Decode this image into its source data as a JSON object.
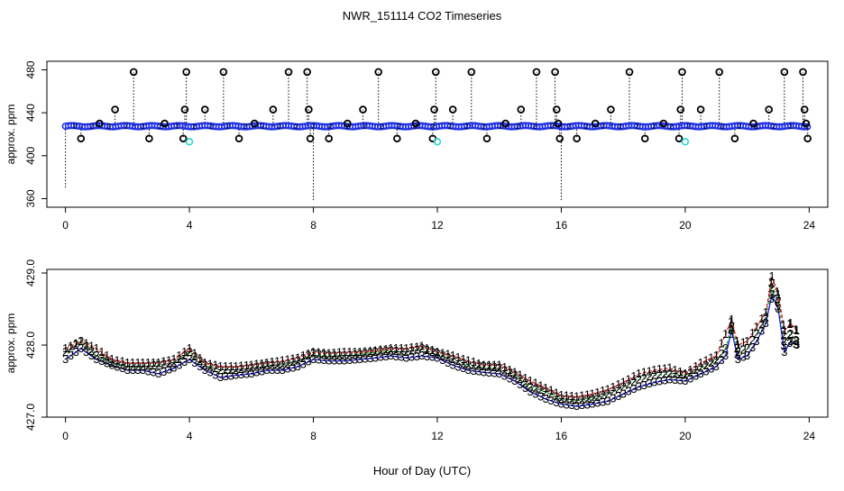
{
  "title": "NWR_151114  CO2 Timeseries",
  "xlabel": "Hour of Day (UTC)",
  "colors": {
    "black": "#000000",
    "blue": "#1f2fe6",
    "cyan": "#25d4d4",
    "green": "#1aa81a",
    "red": "#d91a1a",
    "navy": "#1a1ae6"
  },
  "chart_data": [
    {
      "type": "scatter",
      "title": "",
      "xlabel": "",
      "ylabel": "approx. ppm",
      "xlim": [
        -0.6,
        24.6
      ],
      "ylim": [
        352,
        488
      ],
      "xticks": [
        0,
        4,
        8,
        12,
        16,
        20,
        24
      ],
      "yticks": [
        360,
        400,
        440,
        480
      ],
      "baseline_ppm": 427.5,
      "baseline_series_color": "blue",
      "spikes": [
        {
          "x": 0.0,
          "y": 370
        },
        {
          "x": 0.5,
          "y": 416
        },
        {
          "x": 1.1,
          "y": 430
        },
        {
          "x": 1.6,
          "y": 443
        },
        {
          "x": 2.2,
          "y": 478
        },
        {
          "x": 2.7,
          "y": 416
        },
        {
          "x": 3.2,
          "y": 430
        },
        {
          "x": 3.8,
          "y": 416
        },
        {
          "x": 3.85,
          "y": 443
        },
        {
          "x": 3.9,
          "y": 478
        },
        {
          "x": 4.5,
          "y": 443
        },
        {
          "x": 5.1,
          "y": 478
        },
        {
          "x": 5.6,
          "y": 416
        },
        {
          "x": 6.1,
          "y": 430
        },
        {
          "x": 6.7,
          "y": 443
        },
        {
          "x": 7.2,
          "y": 478
        },
        {
          "x": 7.8,
          "y": 478
        },
        {
          "x": 7.85,
          "y": 443
        },
        {
          "x": 7.9,
          "y": 416
        },
        {
          "x": 8.0,
          "y": 358
        },
        {
          "x": 8.5,
          "y": 416
        },
        {
          "x": 9.1,
          "y": 430
        },
        {
          "x": 9.6,
          "y": 443
        },
        {
          "x": 10.1,
          "y": 478
        },
        {
          "x": 10.7,
          "y": 416
        },
        {
          "x": 11.3,
          "y": 430
        },
        {
          "x": 11.85,
          "y": 416
        },
        {
          "x": 11.9,
          "y": 443
        },
        {
          "x": 11.95,
          "y": 478
        },
        {
          "x": 12.5,
          "y": 443
        },
        {
          "x": 13.1,
          "y": 478
        },
        {
          "x": 13.6,
          "y": 416
        },
        {
          "x": 14.2,
          "y": 430
        },
        {
          "x": 14.7,
          "y": 443
        },
        {
          "x": 15.2,
          "y": 478
        },
        {
          "x": 15.8,
          "y": 478
        },
        {
          "x": 15.85,
          "y": 443
        },
        {
          "x": 15.9,
          "y": 430
        },
        {
          "x": 15.95,
          "y": 416
        },
        {
          "x": 16.0,
          "y": 358
        },
        {
          "x": 16.5,
          "y": 416
        },
        {
          "x": 17.1,
          "y": 430
        },
        {
          "x": 17.6,
          "y": 443
        },
        {
          "x": 18.2,
          "y": 478
        },
        {
          "x": 18.7,
          "y": 416
        },
        {
          "x": 19.3,
          "y": 430
        },
        {
          "x": 19.8,
          "y": 416
        },
        {
          "x": 19.85,
          "y": 443
        },
        {
          "x": 19.9,
          "y": 478
        },
        {
          "x": 20.5,
          "y": 443
        },
        {
          "x": 21.1,
          "y": 478
        },
        {
          "x": 21.6,
          "y": 416
        },
        {
          "x": 22.2,
          "y": 430
        },
        {
          "x": 22.7,
          "y": 443
        },
        {
          "x": 23.2,
          "y": 478
        },
        {
          "x": 23.8,
          "y": 478
        },
        {
          "x": 23.85,
          "y": 443
        },
        {
          "x": 23.9,
          "y": 430
        },
        {
          "x": 23.95,
          "y": 416
        }
      ],
      "outliers_cyan": [
        {
          "x": 4.0,
          "y": 413
        },
        {
          "x": 12.0,
          "y": 413
        },
        {
          "x": 20.0,
          "y": 413
        }
      ]
    },
    {
      "type": "line",
      "title": "",
      "xlabel": "Hour of Day (UTC)",
      "ylabel": "approx. ppm",
      "xlim": [
        -0.6,
        24.6
      ],
      "ylim": [
        427.0,
        429.05
      ],
      "xticks": [
        0,
        4,
        8,
        12,
        16,
        20,
        24
      ],
      "yticks": [
        427.0,
        428.0,
        429.0
      ],
      "ytick_labels": [
        "427.0",
        "428.0",
        "429.0"
      ],
      "series": [
        {
          "name": "1",
          "color": "red",
          "x": [
            0.0,
            0.5,
            1.0,
            1.5,
            2.0,
            2.5,
            3.0,
            3.5,
            4.0,
            4.5,
            5.0,
            5.5,
            6.0,
            6.5,
            7.0,
            7.5,
            8.0,
            8.5,
            9.0,
            9.5,
            10.0,
            10.5,
            11.0,
            11.5,
            12.0,
            12.5,
            13.0,
            13.5,
            14.0,
            14.5,
            15.0,
            15.5,
            16.0,
            16.5,
            17.0,
            17.5,
            18.0,
            18.5,
            19.0,
            19.5,
            20.0,
            20.5,
            21.0,
            21.3,
            21.5,
            21.7,
            22.0,
            22.3,
            22.6,
            22.8,
            23.0,
            23.2,
            23.4,
            23.6
          ],
          "values": [
            427.95,
            428.05,
            427.95,
            427.8,
            427.75,
            427.75,
            427.75,
            427.8,
            427.95,
            427.75,
            427.7,
            427.7,
            427.72,
            427.75,
            427.78,
            427.82,
            427.9,
            427.88,
            427.9,
            427.9,
            427.92,
            427.95,
            427.95,
            427.98,
            427.9,
            427.85,
            427.78,
            427.72,
            427.72,
            427.62,
            427.5,
            427.4,
            427.3,
            427.28,
            427.32,
            427.38,
            427.48,
            427.6,
            427.65,
            427.68,
            427.6,
            427.75,
            427.85,
            428.15,
            428.35,
            428.0,
            428.05,
            428.25,
            428.45,
            428.95,
            428.7,
            428.2,
            428.3,
            428.2
          ]
        },
        {
          "name": "2",
          "color": "green",
          "x": [
            0.0,
            0.5,
            1.0,
            1.5,
            2.0,
            2.5,
            3.0,
            3.5,
            4.0,
            4.5,
            5.0,
            5.5,
            6.0,
            6.5,
            7.0,
            7.5,
            8.0,
            8.5,
            9.0,
            9.5,
            10.0,
            10.5,
            11.0,
            11.5,
            12.0,
            12.5,
            13.0,
            13.5,
            14.0,
            14.5,
            15.0,
            15.5,
            16.0,
            16.5,
            17.0,
            17.5,
            18.0,
            18.5,
            19.0,
            19.5,
            20.0,
            20.5,
            21.0,
            21.3,
            21.5,
            21.7,
            22.0,
            22.3,
            22.6,
            22.8,
            23.0,
            23.2,
            23.4,
            23.6
          ],
          "values": [
            427.9,
            428.05,
            427.85,
            427.75,
            427.7,
            427.7,
            427.72,
            427.75,
            427.9,
            427.72,
            427.65,
            427.65,
            427.68,
            427.72,
            427.72,
            427.78,
            427.88,
            427.85,
            427.85,
            427.87,
            427.9,
            427.92,
            427.9,
            427.95,
            427.88,
            427.8,
            427.72,
            427.7,
            427.68,
            427.58,
            427.42,
            427.35,
            427.25,
            427.23,
            427.25,
            427.32,
            427.42,
            427.52,
            427.58,
            427.6,
            427.58,
            427.68,
            427.78,
            427.95,
            428.25,
            427.9,
            427.95,
            428.15,
            428.38,
            428.85,
            428.6,
            428.05,
            428.15,
            428.05
          ]
        },
        {
          "name": "3",
          "color": "navy",
          "x": [
            0.0,
            0.5,
            1.0,
            1.5,
            2.0,
            2.5,
            3.0,
            3.5,
            4.0,
            4.5,
            5.0,
            5.5,
            6.0,
            6.5,
            7.0,
            7.5,
            8.0,
            8.5,
            9.0,
            9.5,
            10.0,
            10.5,
            11.0,
            11.5,
            12.0,
            12.5,
            13.0,
            13.5,
            14.0,
            14.5,
            15.0,
            15.5,
            16.0,
            16.5,
            17.0,
            17.5,
            18.0,
            18.5,
            19.0,
            19.5,
            20.0,
            20.5,
            21.0,
            21.3,
            21.5,
            21.7,
            22.0,
            22.3,
            22.6,
            22.8,
            23.0,
            23.2,
            23.4,
            23.6
          ],
          "values": [
            427.8,
            427.95,
            427.8,
            427.72,
            427.65,
            427.65,
            427.6,
            427.68,
            427.8,
            427.65,
            427.55,
            427.58,
            427.6,
            427.65,
            427.65,
            427.7,
            427.8,
            427.78,
            427.78,
            427.8,
            427.82,
            427.85,
            427.82,
            427.85,
            427.82,
            427.72,
            427.65,
            427.62,
            427.6,
            427.5,
            427.35,
            427.25,
            427.18,
            427.15,
            427.18,
            427.22,
            427.32,
            427.42,
            427.48,
            427.52,
            427.5,
            427.6,
            427.7,
            427.85,
            428.2,
            427.8,
            427.85,
            428.05,
            428.3,
            428.7,
            428.5,
            427.9,
            428.05,
            428.0
          ]
        }
      ]
    }
  ]
}
